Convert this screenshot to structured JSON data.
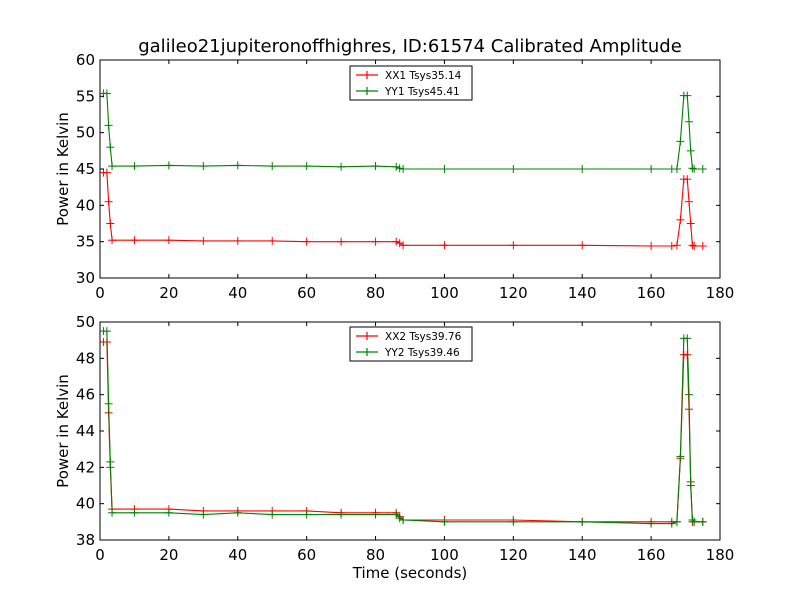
{
  "chart_data": [
    {
      "type": "line",
      "title": "galileo21jupiteronoffhighres, ID:61574 Calibrated Amplitude",
      "xlabel": "",
      "ylabel": "Power in Kelvin",
      "xlim": [
        0,
        180
      ],
      "ylim": [
        30,
        60
      ],
      "xticks": [
        "0",
        "20",
        "40",
        "60",
        "80",
        "100",
        "120",
        "140",
        "160",
        "180"
      ],
      "yticks": [
        "30",
        "35",
        "40",
        "45",
        "50",
        "55",
        "60"
      ],
      "grid": false,
      "legend_position": "top-center",
      "series": [
        {
          "name": "XX1 Tsys35.14",
          "color": "#ff0000",
          "x": [
            1,
            2,
            2.5,
            3,
            3.5,
            10,
            20,
            30,
            40,
            50,
            60,
            70,
            80,
            86,
            87,
            88,
            100,
            120,
            140,
            160,
            166,
            167.5,
            168.5,
            169.5,
            170.5,
            171,
            171.5,
            172,
            172.5,
            175
          ],
          "y": [
            44.5,
            44.5,
            40.5,
            37.5,
            35.2,
            35.2,
            35.2,
            35.1,
            35.1,
            35.1,
            35.0,
            35.0,
            35.0,
            35.0,
            34.8,
            34.5,
            34.5,
            34.5,
            34.5,
            34.4,
            34.4,
            34.5,
            38.0,
            43.6,
            43.6,
            40.5,
            37.5,
            34.5,
            34.4,
            34.4
          ]
        },
        {
          "name": "YY1 Tsys45.41",
          "color": "#008000",
          "x": [
            1,
            2,
            2.5,
            3,
            3.5,
            10,
            20,
            30,
            40,
            50,
            60,
            70,
            80,
            86,
            87,
            88,
            100,
            120,
            140,
            160,
            166,
            167.5,
            168.5,
            169.5,
            170.5,
            171,
            171.5,
            172,
            172.5,
            175
          ],
          "y": [
            55.4,
            55.4,
            51.0,
            48.0,
            45.4,
            45.4,
            45.5,
            45.4,
            45.5,
            45.4,
            45.4,
            45.3,
            45.4,
            45.3,
            45.1,
            45.0,
            45.0,
            45.0,
            45.0,
            45.0,
            45.0,
            45.0,
            48.8,
            55.1,
            55.1,
            51.5,
            47.5,
            45.1,
            45.0,
            45.0
          ]
        }
      ]
    },
    {
      "type": "line",
      "title": "",
      "xlabel": "Time (seconds)",
      "ylabel": "Power in Kelvin",
      "xlim": [
        0,
        180
      ],
      "ylim": [
        38,
        50
      ],
      "xticks": [
        "0",
        "20",
        "40",
        "60",
        "80",
        "100",
        "120",
        "140",
        "160",
        "180"
      ],
      "yticks": [
        "38",
        "40",
        "42",
        "44",
        "46",
        "48",
        "50"
      ],
      "grid": false,
      "legend_position": "top-center",
      "series": [
        {
          "name": "XX2 Tsys39.76",
          "color": "#ff0000",
          "x": [
            1,
            2,
            2.5,
            3,
            3.5,
            10,
            20,
            30,
            40,
            50,
            60,
            70,
            80,
            86,
            87,
            88,
            100,
            120,
            140,
            160,
            166,
            167.5,
            168.5,
            169.5,
            170.5,
            171,
            171.5,
            172,
            172.5,
            175
          ],
          "y": [
            48.9,
            48.9,
            45.0,
            42.0,
            39.7,
            39.7,
            39.7,
            39.6,
            39.6,
            39.6,
            39.6,
            39.5,
            39.5,
            39.5,
            39.3,
            39.1,
            39.1,
            39.1,
            39.0,
            39.0,
            39.0,
            39.0,
            42.5,
            48.2,
            48.2,
            45.2,
            41.2,
            39.0,
            39.0,
            39.0
          ]
        },
        {
          "name": "YY2 Tsys39.46",
          "color": "#008000",
          "x": [
            1,
            2,
            2.5,
            3,
            3.5,
            10,
            20,
            30,
            40,
            50,
            60,
            70,
            80,
            86,
            87,
            88,
            100,
            120,
            140,
            160,
            166,
            167.5,
            168.5,
            169.5,
            170.5,
            171,
            171.5,
            172,
            172.5,
            175
          ],
          "y": [
            49.5,
            49.5,
            45.5,
            42.3,
            39.5,
            39.5,
            39.5,
            39.4,
            39.5,
            39.4,
            39.4,
            39.4,
            39.4,
            39.4,
            39.2,
            39.1,
            39.0,
            39.0,
            39.0,
            38.9,
            38.9,
            39.0,
            42.6,
            49.1,
            49.1,
            46.0,
            41.0,
            39.1,
            39.0,
            39.0
          ]
        }
      ]
    }
  ]
}
